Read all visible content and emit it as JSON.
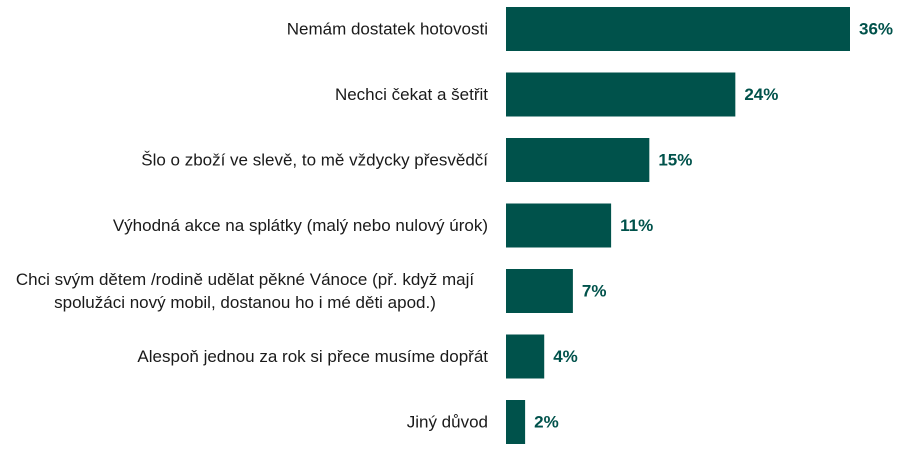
{
  "chart_data": {
    "type": "bar",
    "orientation": "horizontal",
    "categories": [
      [
        "Nemám dostatek hotovosti"
      ],
      [
        "Nechci čekat a šetřit"
      ],
      [
        "Šlo o zboží ve slevě, to mě vždycky přesvědčí"
      ],
      [
        "Výhodná akce na splátky (malý nebo nulový úrok)"
      ],
      [
        "Chci svým dětem /rodině udělat pěkné Vánoce (př. když mají",
        "spolužáci nový mobil, dostanou ho i mé děti apod.)"
      ],
      [
        "Alespoň jednou za rok si přece musíme dopřát"
      ],
      [
        "Jiný důvod"
      ]
    ],
    "values": [
      36,
      24,
      15,
      11,
      7,
      4,
      2
    ],
    "value_labels": [
      "36%",
      "24%",
      "15%",
      "11%",
      "7%",
      "4%",
      "2%"
    ],
    "unit": "%",
    "xlim": [
      0,
      36
    ],
    "grid": false,
    "legend": "none",
    "colors": {
      "bar": "#00524B",
      "value_label": "#00524B",
      "category_label": "#1a1a1a"
    }
  }
}
